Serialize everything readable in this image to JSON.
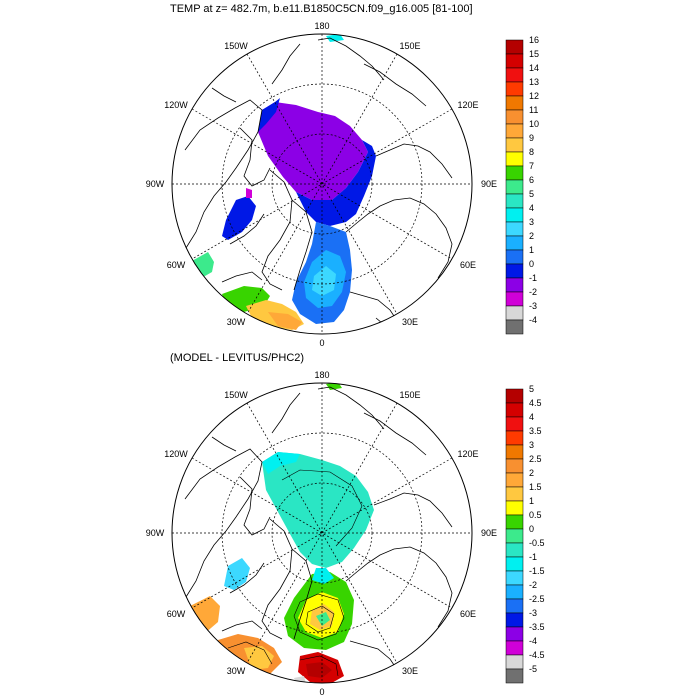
{
  "panels": [
    {
      "title": "TEMP at z= 482.7m, b.e11.B1850C5CN.f09_g16.005 [81-100]",
      "lon_labels": {
        "n": "180",
        "nw": "150W",
        "ne": "150E",
        "wnw": "120W",
        "ene": "120E",
        "w": "90W",
        "e": "90E",
        "wsw": "60W",
        "esw": "60E",
        "sw": "30W",
        "se": "30E",
        "s": "0"
      },
      "colorbar": {
        "labels": [
          "16",
          "15",
          "14",
          "13",
          "12",
          "11",
          "10",
          "9",
          "8",
          "7",
          "6",
          "5",
          "4",
          "3",
          "2",
          "1",
          "0",
          "-1",
          "-2",
          "-3",
          "-4"
        ],
        "colors": [
          "#b40000",
          "#d40000",
          "#f01010",
          "#ff3a00",
          "#f07800",
          "#f89030",
          "#ffa838",
          "#ffc840",
          "#ffff00",
          "#38d400",
          "#3cea8c",
          "#2ae6c4",
          "#00f0f0",
          "#3cd8ff",
          "#1ab0ff",
          "#1a70f5",
          "#0018e6",
          "#8c00e6",
          "#d000d8",
          "#d8d8d8",
          "#707070"
        ]
      }
    },
    {
      "title": "(MODEL - LEVITUS/PHC2)",
      "lon_labels": {
        "n": "180",
        "nw": "150W",
        "ne": "150E",
        "wnw": "120W",
        "ene": "120E",
        "w": "90W",
        "e": "90E",
        "wsw": "60W",
        "esw": "60E",
        "sw": "30W",
        "se": "30E",
        "s": "0"
      },
      "colorbar": {
        "labels": [
          "5",
          "4.5",
          "4",
          "3.5",
          "3",
          "2.5",
          "2",
          "1.5",
          "1",
          "0.5",
          "0",
          "-0.5",
          "-1",
          "-1.5",
          "-2",
          "-2.5",
          "-3",
          "-3.5",
          "-4",
          "-4.5",
          "-5"
        ],
        "colors": [
          "#b40000",
          "#d40000",
          "#f01010",
          "#ff3a00",
          "#f07800",
          "#f89030",
          "#ffa838",
          "#ffc840",
          "#ffff00",
          "#38d400",
          "#3cea8c",
          "#2ae6c4",
          "#00f0f0",
          "#3cd8ff",
          "#1ab0ff",
          "#1a70f5",
          "#0018e6",
          "#8c00e6",
          "#d000d8",
          "#d8d8d8",
          "#707070"
        ]
      }
    }
  ]
}
